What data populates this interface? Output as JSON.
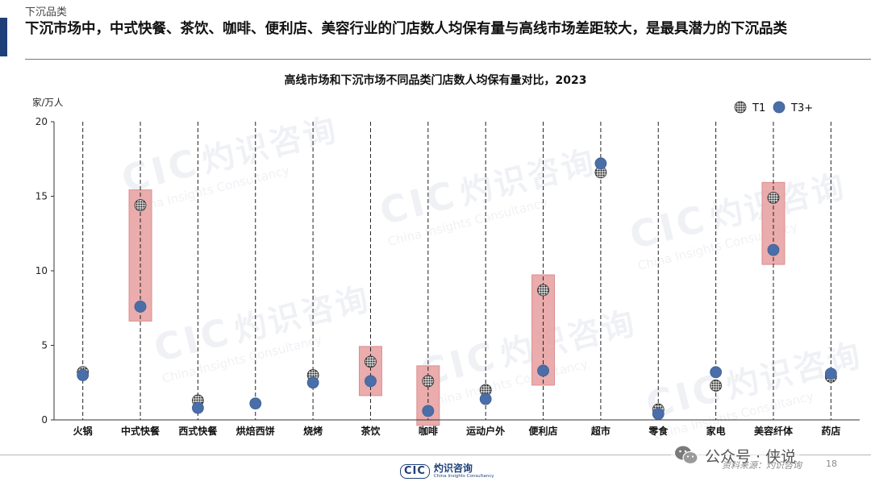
{
  "header": {
    "section_label": "下沉品类",
    "headline": "下沉市场中，中式快餐、茶饮、咖啡、便利店、美容行业的门店数人均保有量与高线市场差距较大，是最具潜力的下沉品类"
  },
  "chart_data": {
    "type": "scatter",
    "title": "高线市场和下沉市场不同品类门店数人均保有量对比，2023",
    "ylabel": "家/万人",
    "ylim": [
      0,
      20
    ],
    "yticks": [
      0,
      5,
      10,
      15,
      20
    ],
    "legend_position": "top-right",
    "categories": [
      "火锅",
      "中式快餐",
      "西式快餐",
      "烘焙西饼",
      "烧烤",
      "茶饮",
      "咖啡",
      "运动户外",
      "便利店",
      "超市",
      "零食",
      "家电",
      "美容纤体",
      "药店"
    ],
    "series": [
      {
        "name": "T1",
        "marker": "hatched-dark",
        "values": [
          3.2,
          14.4,
          1.3,
          null,
          3.0,
          3.9,
          2.6,
          2.0,
          8.7,
          16.6,
          0.7,
          2.3,
          14.9,
          2.9
        ]
      },
      {
        "name": "T3+",
        "marker": "solid-blue",
        "color": "#4a6ea8",
        "values": [
          3.0,
          7.6,
          0.8,
          1.1,
          2.5,
          2.6,
          0.6,
          1.4,
          3.3,
          17.2,
          0.4,
          3.2,
          11.4,
          3.1
        ]
      }
    ],
    "highlighted_categories": [
      "中式快餐",
      "茶饮",
      "咖啡",
      "便利店",
      "美容纤体"
    ],
    "highlight_color": "#e8a4a4"
  },
  "footer": {
    "logo_mark": "CIC",
    "logo_cn": "灼识咨询",
    "logo_en": "China Insights Consultancy",
    "source_note": "资料来源：灼识咨询",
    "page_number": "18",
    "wechat_label": "公众号 · 侠说"
  },
  "watermark": {
    "mark": "CIC",
    "cn": "灼识咨询",
    "en": "China Insights Consultancy"
  }
}
